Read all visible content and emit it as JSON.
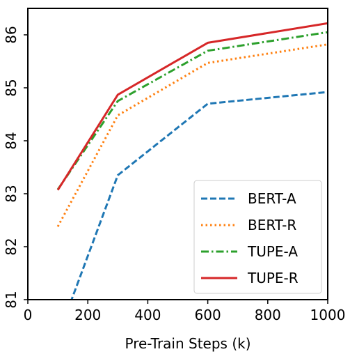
{
  "chart_data": {
    "type": "line",
    "title": "",
    "xlabel": "Pre-Train Steps (k)",
    "ylabel": "",
    "xlim": [
      0,
      1000
    ],
    "ylim": [
      81,
      86.5
    ],
    "xticks": [
      0,
      200,
      400,
      600,
      800,
      1000
    ],
    "yticks": [
      81,
      82,
      83,
      84,
      85,
      86
    ],
    "grid": false,
    "legend_position": "lower-right",
    "series": [
      {
        "name": "BERT-A",
        "color": "#1f77b4",
        "style": "dashed",
        "x": [
          100,
          300,
          600,
          1000
        ],
        "y": [
          80.3,
          83.35,
          84.7,
          84.92
        ]
      },
      {
        "name": "BERT-R",
        "color": "#ff7f0e",
        "style": "dotted",
        "x": [
          100,
          300,
          600,
          1000
        ],
        "y": [
          82.38,
          84.48,
          85.47,
          85.82
        ]
      },
      {
        "name": "TUPE-A",
        "color": "#2ca02c",
        "style": "dashdot",
        "x": [
          100,
          300,
          600,
          1000
        ],
        "y": [
          83.08,
          84.75,
          85.7,
          86.05
        ]
      },
      {
        "name": "TUPE-R",
        "color": "#d62728",
        "style": "solid",
        "x": [
          100,
          300,
          600,
          1000
        ],
        "y": [
          83.07,
          84.87,
          85.85,
          86.22
        ]
      }
    ]
  }
}
